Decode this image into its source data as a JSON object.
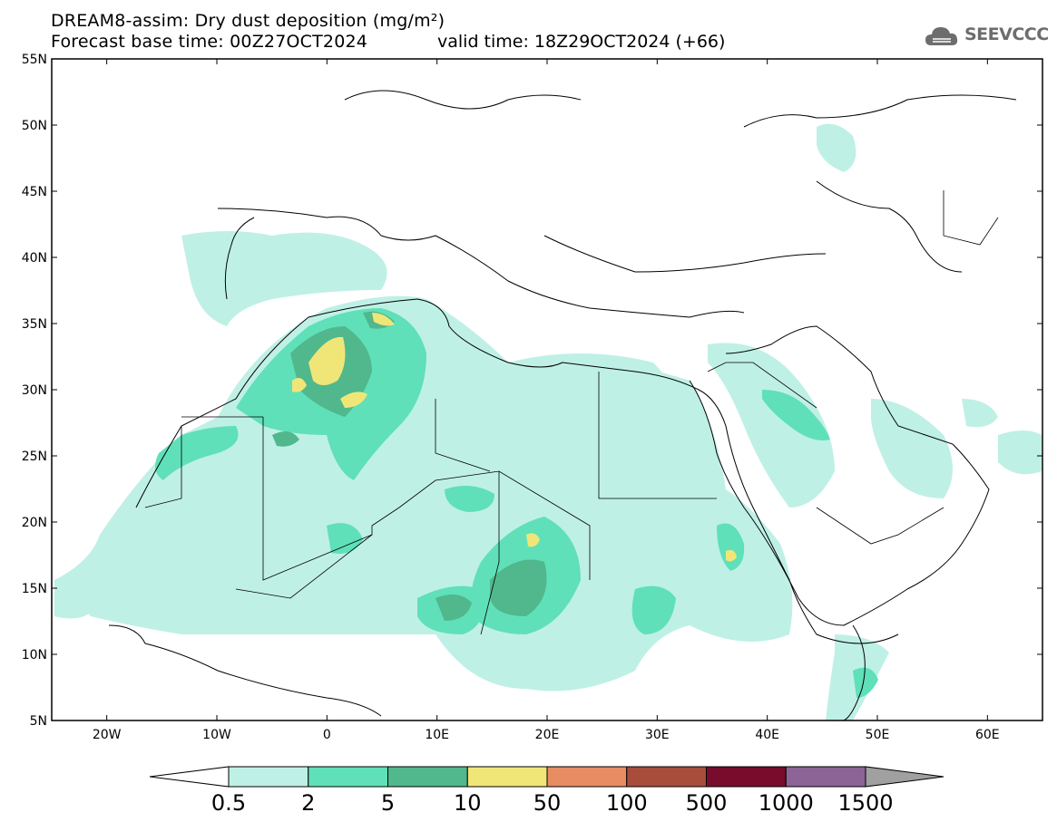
{
  "title_line1": "DREAM8-assim: Dry dust deposition (mg/m²)",
  "title_line2": "Forecast base time: 00Z27OCT2024",
  "valid_time": "valid time: 18Z29OCT2024 (+66)",
  "logo": {
    "text": "SEEVCCC",
    "icon": "cloud-icon"
  },
  "axes": {
    "lat_labels": [
      "55N",
      "50N",
      "45N",
      "40N",
      "35N",
      "30N",
      "25N",
      "20N",
      "15N",
      "10N",
      "5N"
    ],
    "lon_labels": [
      "20W",
      "10W",
      "0",
      "10E",
      "20E",
      "30E",
      "40E",
      "50E",
      "60E"
    ],
    "lat_range": [
      5,
      55
    ],
    "lon_range": [
      -25,
      65
    ]
  },
  "colorbar": {
    "labels": [
      "0.5",
      "2",
      "5",
      "10",
      "50",
      "100",
      "500",
      "1000",
      "1500"
    ],
    "colors": [
      "#bff0e6",
      "#5fe0b8",
      "#50b88c",
      "#f0e678",
      "#e88c64",
      "#a84c3c",
      "#780c2c",
      "#8c6496",
      "#a0a0a0"
    ],
    "below_color": "#ffffff"
  }
}
